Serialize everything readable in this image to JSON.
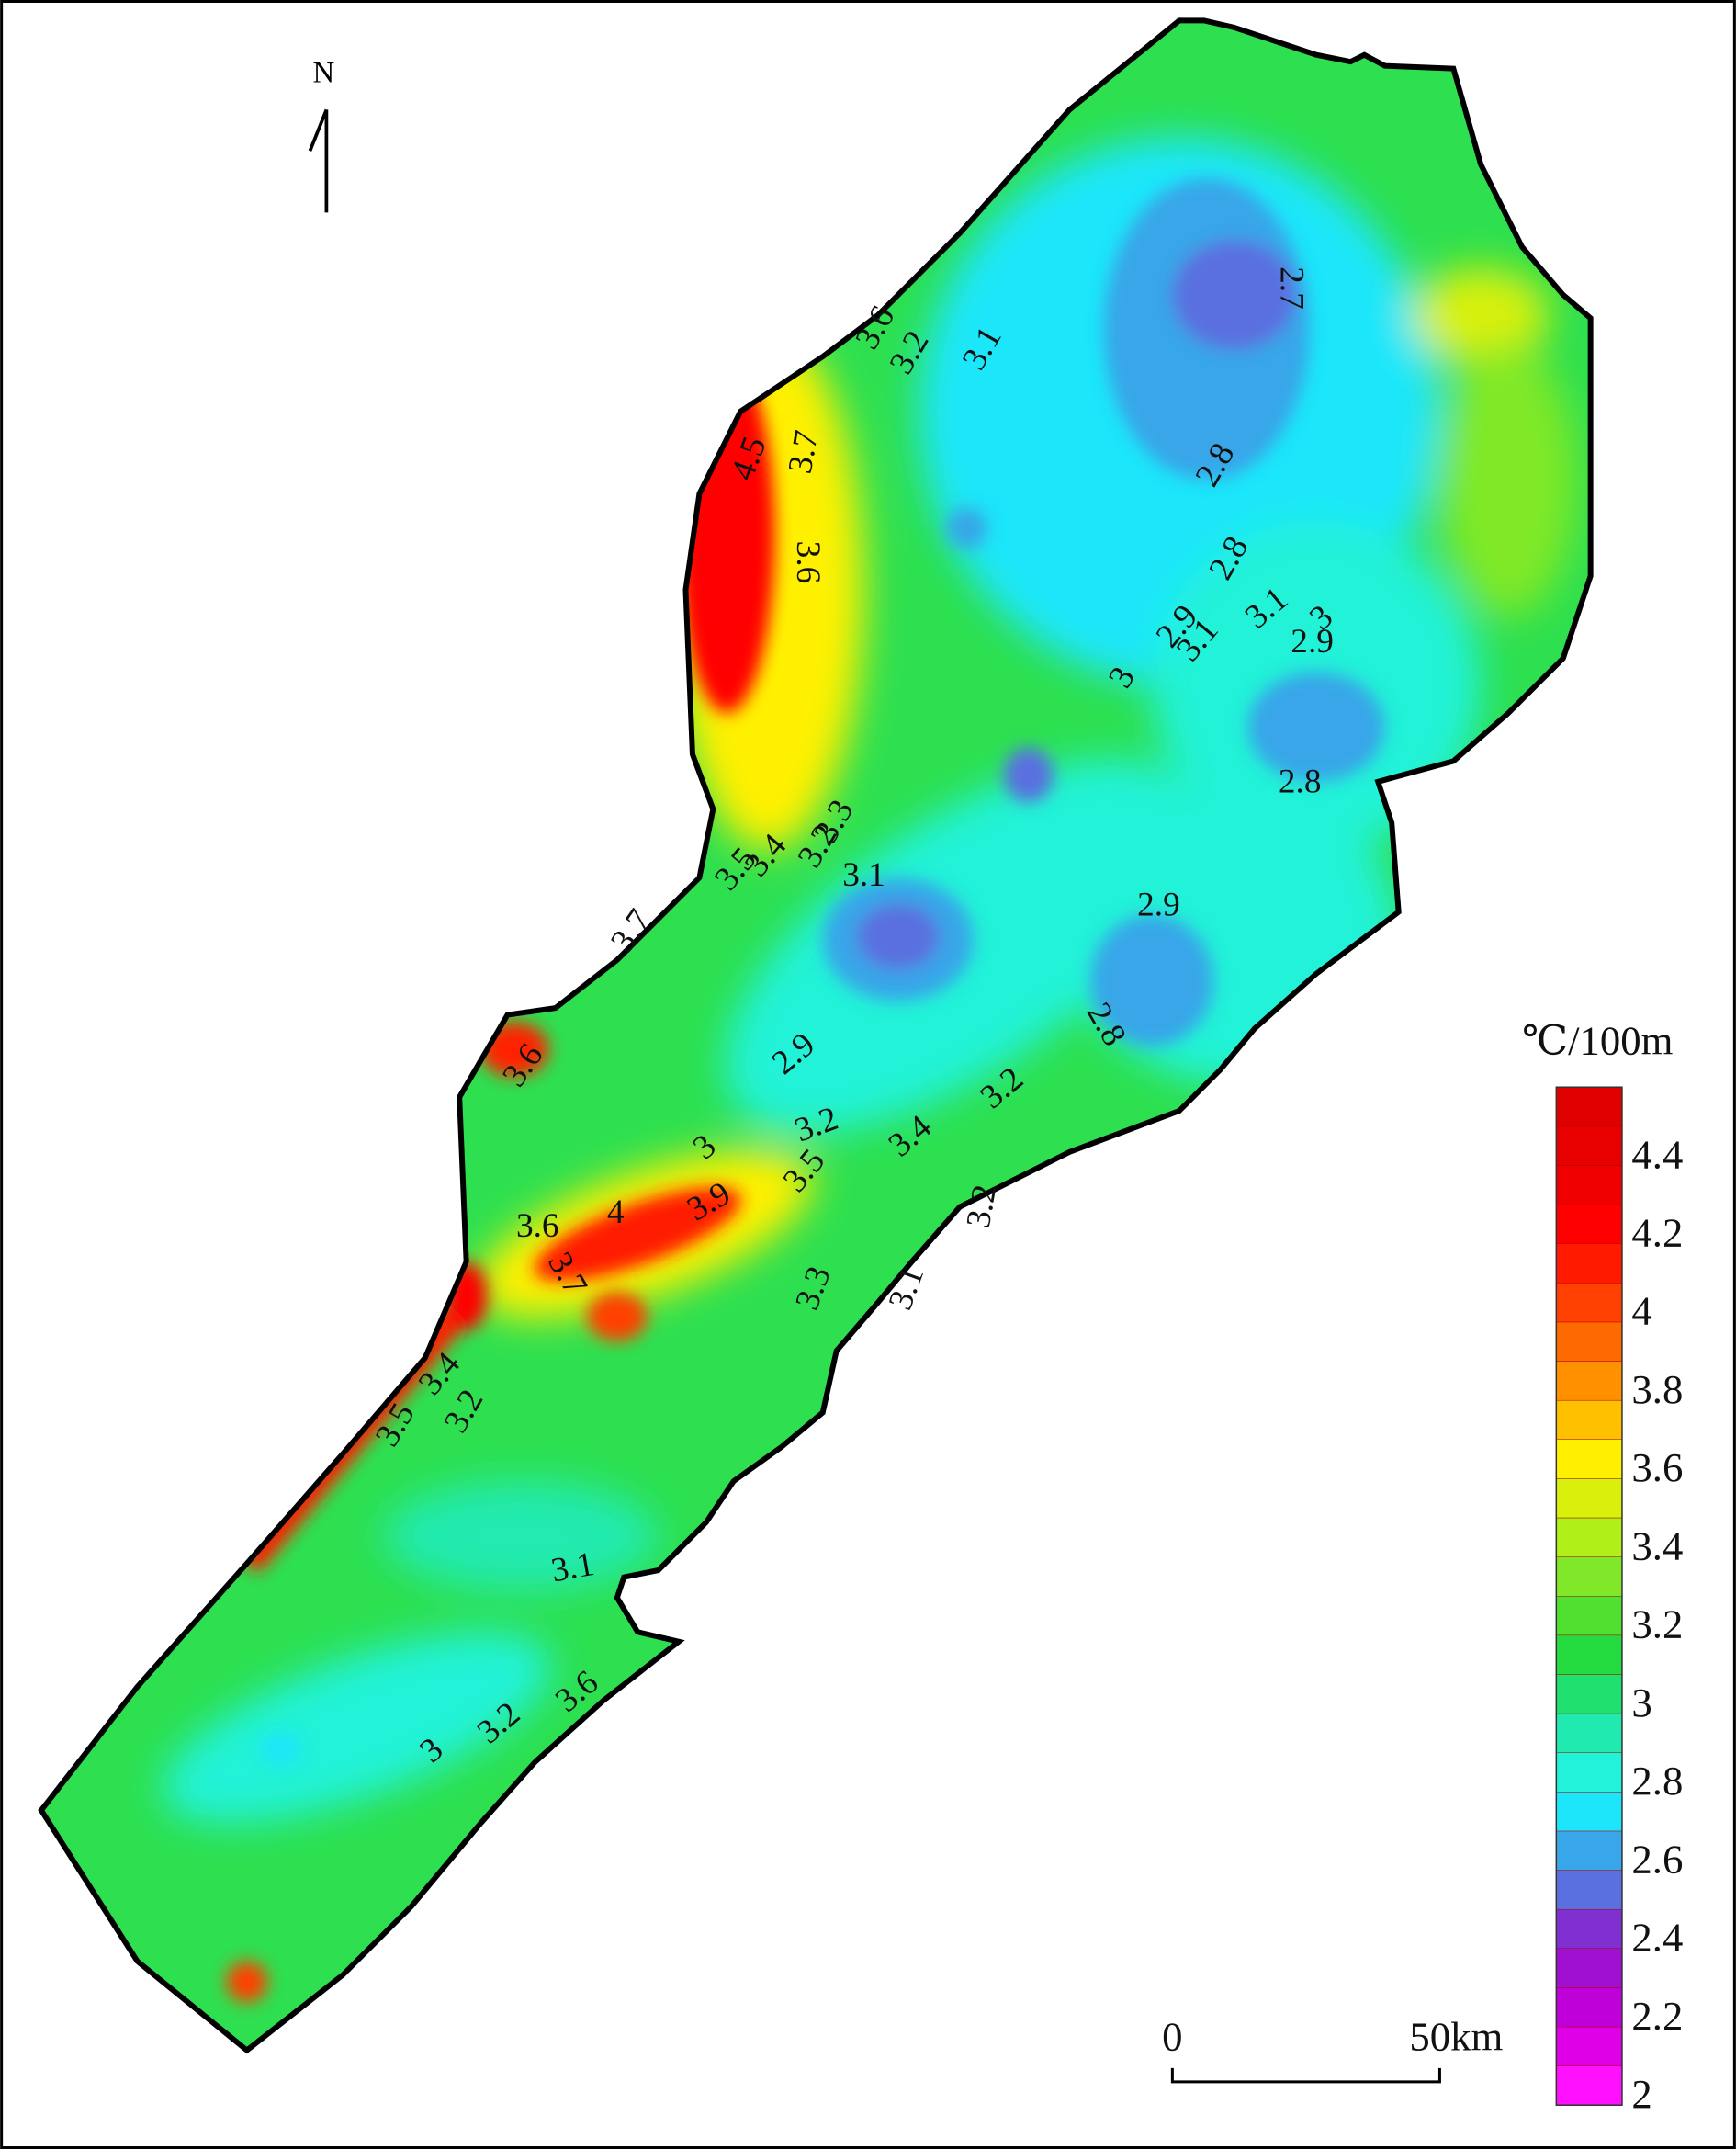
{
  "map": {
    "north": "N",
    "contour_labels": [
      "3.6",
      "3.2",
      "3.1",
      "2.7",
      "4.5",
      "3.7",
      "2.8",
      "3.6",
      "2.8",
      "2.9",
      "3.1",
      "3.1",
      "3",
      "2.9",
      "3",
      "2.8",
      "3.3",
      "3.2",
      "3.5",
      "3.4",
      "3.1",
      "3.7",
      "2.9",
      "2.8",
      "3.6",
      "2.9",
      "3.2",
      "3.2",
      "3.4",
      "3",
      "3.5",
      "3.9",
      "4",
      "3.6",
      "3.7",
      "3.3",
      "3.1",
      "3.2",
      "3.4",
      "3.5",
      "3.2",
      "3.1",
      "3.6",
      "3.2",
      "3"
    ],
    "legend": {
      "title": "℃/100m",
      "ticks": [
        2,
        2.2,
        2.4,
        2.6,
        2.8,
        3,
        3.2,
        3.4,
        3.6,
        3.8,
        4,
        4.2,
        4.4
      ],
      "colors": [
        "#ff10ff",
        "#e000e8",
        "#c000d8",
        "#a010d0",
        "#8030d0",
        "#5a6fe0",
        "#38a6e8",
        "#1ee6fa",
        "#22f2d8",
        "#20eab0",
        "#20e070",
        "#24dc40",
        "#50e030",
        "#80e828",
        "#b0f018",
        "#d8f00c",
        "#fff000",
        "#ffc000",
        "#ff9000",
        "#ff6a00",
        "#ff4000",
        "#ff1a00",
        "#ff0000",
        "#f00000",
        "#e80000",
        "#e00000"
      ]
    },
    "scale_bar": {
      "start": "0",
      "end": "50km"
    }
  }
}
